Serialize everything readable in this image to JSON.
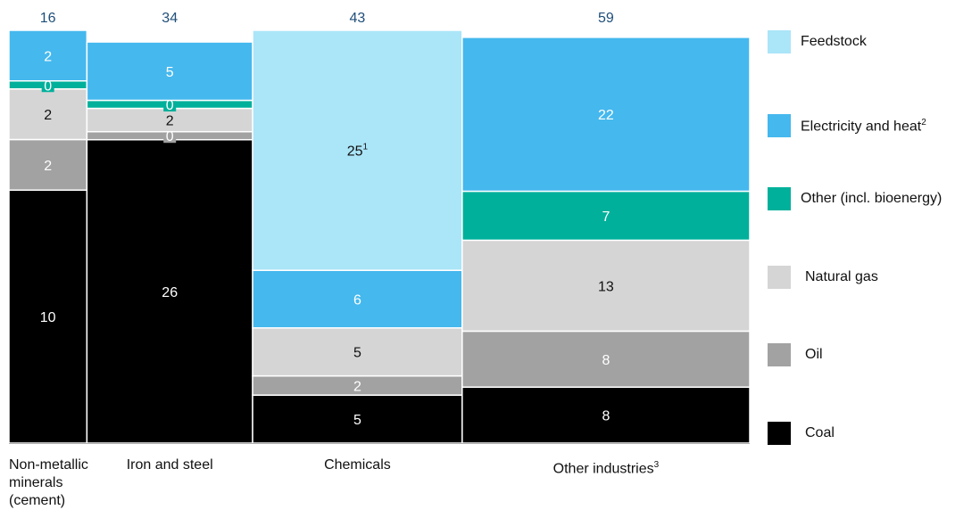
{
  "chart_data": {
    "type": "bar",
    "subtype": "marimekko",
    "title": "",
    "categories": [
      "Non-metallic minerals (cement)",
      "Iron and steel",
      "Chemicals",
      "Other industries"
    ],
    "category_labels": [
      {
        "lines": [
          "Non-metallic",
          "minerals",
          "(cement)"
        ],
        "sup": ""
      },
      {
        "lines": [
          "Iron and steel"
        ],
        "sup": ""
      },
      {
        "lines": [
          "Chemicals"
        ],
        "sup": ""
      },
      {
        "lines": [
          "Other industries"
        ],
        "sup": "3"
      }
    ],
    "totals": [
      16,
      34,
      43,
      59
    ],
    "series": [
      {
        "name": "Coal",
        "color": "#000000",
        "values": [
          10,
          26,
          5,
          8
        ],
        "labels": [
          "10",
          "26",
          "5",
          "8"
        ],
        "sups": [
          "",
          "",
          "",
          ""
        ]
      },
      {
        "name": "Oil",
        "color": "#a2a2a2",
        "values": [
          2,
          0,
          2,
          8
        ],
        "labels": [
          "2",
          "0",
          "2",
          "8"
        ],
        "sups": [
          "",
          "",
          "",
          ""
        ]
      },
      {
        "name": "Natural gas",
        "color": "#d5d5d5",
        "values": [
          2,
          2,
          5,
          13
        ],
        "labels": [
          "2",
          "2",
          "5",
          "13"
        ],
        "sups": [
          "",
          "",
          "",
          ""
        ]
      },
      {
        "name": "Other (incl. bioenergy)",
        "color": "#00b09b",
        "values": [
          0,
          0,
          0,
          7
        ],
        "labels": [
          "0",
          "0",
          "",
          "7"
        ],
        "sups": [
          "",
          "",
          "",
          ""
        ]
      },
      {
        "name": "Electricity and heat",
        "color": "#45b8ee",
        "values": [
          2,
          5,
          6,
          22
        ],
        "labels": [
          "2",
          "5",
          "6",
          "22"
        ],
        "sups": [
          "",
          "",
          "",
          ""
        ]
      },
      {
        "name": "Feedstock",
        "color": "#abe5f8",
        "values": [
          0,
          0,
          25,
          0
        ],
        "labels": [
          "",
          "",
          "25",
          ""
        ],
        "sups": [
          "",
          "",
          "1",
          ""
        ]
      }
    ],
    "legend": [
      {
        "name": "Feedstock",
        "sup": "",
        "color": "#abe5f8"
      },
      {
        "name": "Electricity and heat",
        "sup": "2",
        "color": "#45b8ee"
      },
      {
        "name": "Other (incl. bioenergy)",
        "sup": "",
        "color": "#00b09b"
      },
      {
        "name": "Natural gas",
        "sup": "",
        "color": "#d5d5d5"
      },
      {
        "name": "Oil",
        "sup": "",
        "color": "#a2a2a2"
      },
      {
        "name": "Coal",
        "sup": "",
        "color": "#000000"
      }
    ],
    "legend_placement": "right",
    "grid": false
  }
}
